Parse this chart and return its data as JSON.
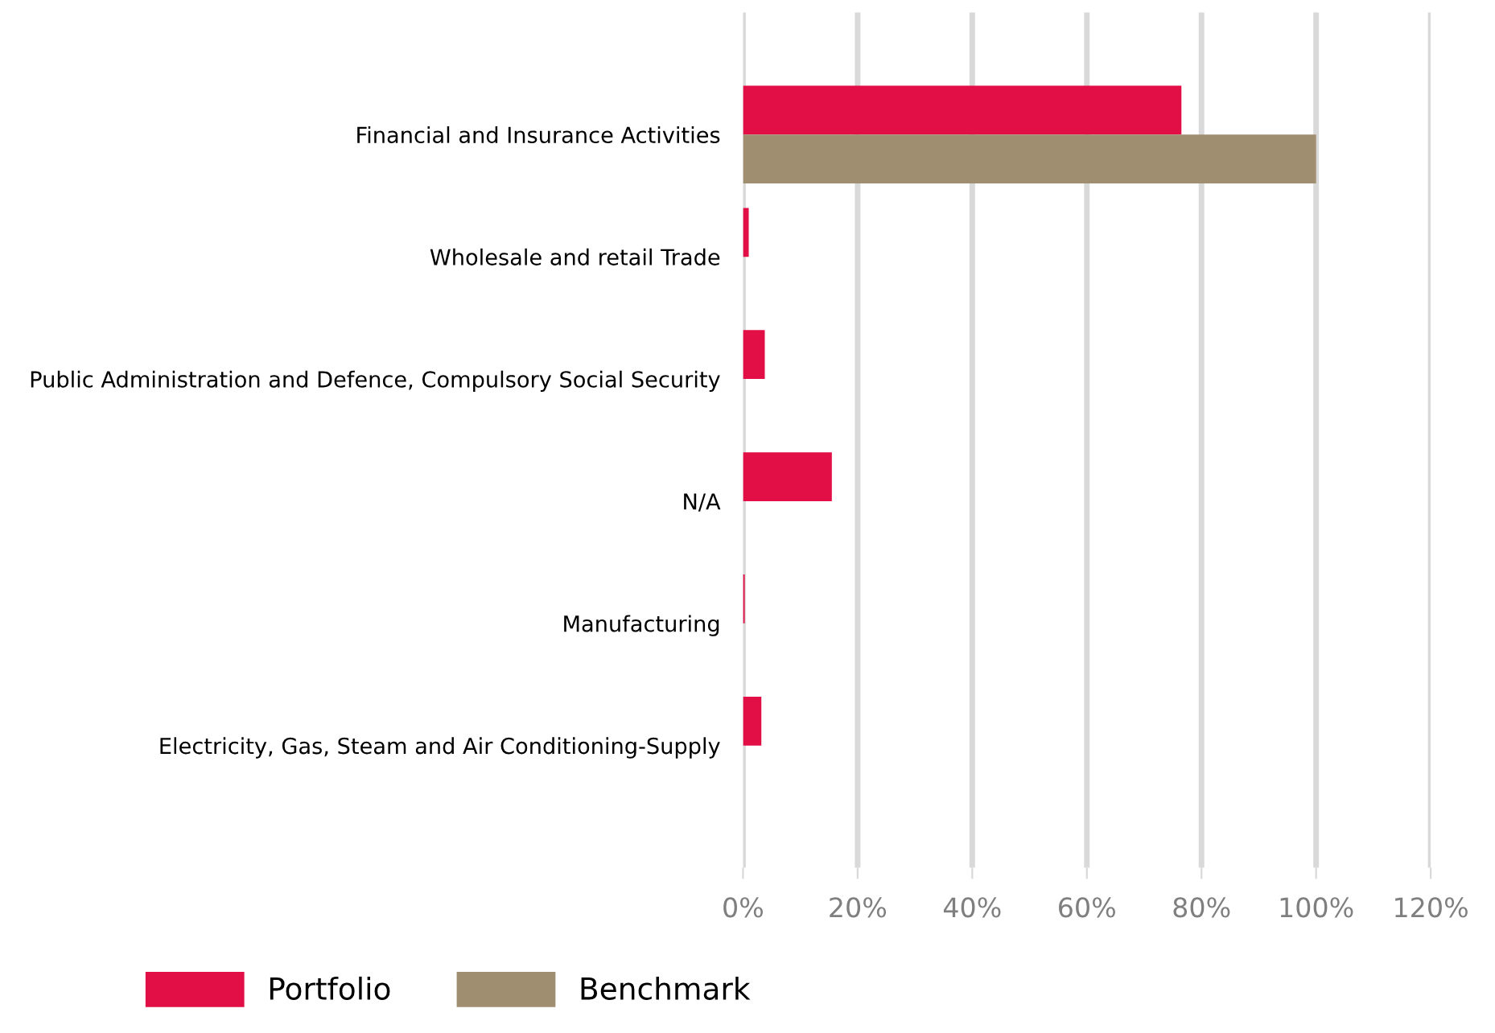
{
  "chart_data": {
    "type": "bar",
    "orientation": "horizontal",
    "categories": [
      "Financial and Insurance Activities",
      "Wholesale and retail Trade",
      "Public Administration and Defence, Compulsory Social Security",
      "N/A",
      "Manufacturing",
      "Electricity, Gas, Steam and Air Conditioning-Supply"
    ],
    "series": [
      {
        "name": "Portfolio",
        "color": "#e20f47",
        "values": [
          76.5,
          1.0,
          3.8,
          15.5,
          0.3,
          3.2
        ]
      },
      {
        "name": "Benchmark",
        "color": "#a08e70",
        "values": [
          100,
          0,
          0,
          0,
          0,
          0
        ]
      }
    ],
    "xlim": [
      0,
      120
    ],
    "xticks": [
      {
        "value": 0,
        "label": "0%"
      },
      {
        "value": 20,
        "label": "20%"
      },
      {
        "value": 40,
        "label": "40%"
      },
      {
        "value": 60,
        "label": "60%"
      },
      {
        "value": 80,
        "label": "80%"
      },
      {
        "value": 100,
        "label": "100%"
      },
      {
        "value": 120,
        "label": "120%"
      }
    ],
    "grid": "x",
    "legend": "bottom"
  }
}
